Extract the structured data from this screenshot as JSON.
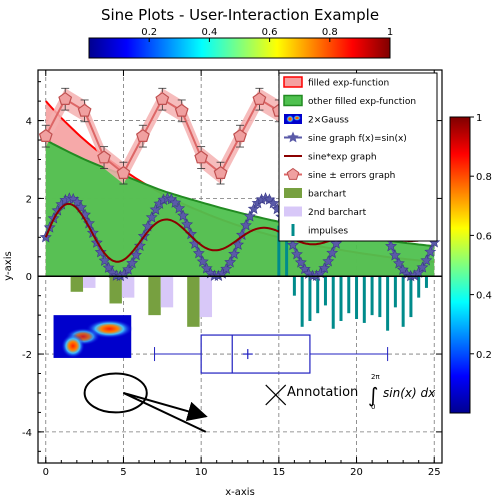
{
  "chart_data": {
    "type": "line",
    "title": "Sine Plots - User-Interaction Example",
    "xlabel": "x-axis",
    "ylabel": "y-axis",
    "xlim": [
      -0.5,
      25.5
    ],
    "ylim": [
      -4.8,
      5.3
    ],
    "x_ticks": [
      "0",
      "5",
      "10",
      "15",
      "20",
      "25"
    ],
    "y_ticks": [
      "-4",
      "-2",
      "0",
      "2",
      "4"
    ],
    "grid": true,
    "top_colorbar": {
      "ticks": [
        "0.2",
        "0.4",
        "0.6",
        "0.8",
        "1"
      ],
      "range": [
        0,
        1
      ],
      "colormap": "jet"
    },
    "right_colorbar": {
      "ticks": [
        "0.2",
        "0.4",
        "0.6",
        "0.8",
        "1"
      ],
      "range": [
        0,
        1
      ],
      "colormap": "jet"
    },
    "legend": {
      "position": "top-right",
      "entries": [
        {
          "label": "filled exp-function",
          "color": "#f5a0a0",
          "kind": "fill-red"
        },
        {
          "label": "other filled exp-function",
          "color": "#4fc14f",
          "kind": "fill-green"
        },
        {
          "label": "2×Gauss",
          "color": "#ff0000",
          "kind": "image"
        },
        {
          "label": "sine graph f(x)=sin(x)",
          "color": "#5a5aa8",
          "kind": "star-line"
        },
        {
          "label": "sine*exp graph",
          "color": "#8b0000",
          "kind": "line"
        },
        {
          "label": "sine ± errors graph",
          "color": "#e07a7a",
          "kind": "pentagon-line"
        },
        {
          "label": "barchart",
          "color": "#77a040",
          "kind": "bar"
        },
        {
          "label": "2nd barchart",
          "color": "#d8c8f8",
          "kind": "bar"
        },
        {
          "label": "impulses",
          "color": "#008b8b",
          "kind": "impulse"
        }
      ]
    },
    "series": [
      {
        "name": "filled exp-function",
        "color": "#f5a0a0",
        "stroke": "#ff0000",
        "x": [
          0,
          2.5,
          5,
          7.5,
          10,
          12.5,
          15,
          17.5,
          20,
          22.5,
          25
        ],
        "y": [
          4.5,
          3.5,
          2.73,
          2.12,
          1.66,
          1.29,
          1.0,
          0.78,
          0.61,
          0.47,
          0.37
        ]
      },
      {
        "name": "other filled exp-function",
        "color": "#4fc14f",
        "stroke": "#228b22",
        "x": [
          0,
          2.5,
          5,
          7.5,
          10,
          12.5,
          15,
          17.5,
          20,
          22.5,
          25
        ],
        "y": [
          3.5,
          3.0,
          2.6,
          2.2,
          1.9,
          1.63,
          1.4,
          1.2,
          1.03,
          0.89,
          0.77
        ]
      },
      {
        "name": "sine graph f(x)=sin(x)",
        "color": "#5a5aa8",
        "function": "sin",
        "amplitude": 1,
        "offset": 1,
        "x_range": [
          0,
          25
        ],
        "n": 100
      },
      {
        "name": "sine*exp graph",
        "color": "#8b0000",
        "function": "sinexp",
        "amplitude": 1,
        "offset": 1,
        "decay": 10,
        "x_range": [
          0,
          25
        ]
      },
      {
        "name": "sine ± errors graph",
        "color": "#e07a7a",
        "x": [
          0,
          1.25,
          2.5,
          3.75,
          5,
          6.25,
          7.5,
          8.75,
          10,
          11.25,
          12.5,
          13.75,
          15
        ],
        "y": [
          3.6,
          4.55,
          4.25,
          3.05,
          2.65,
          3.6,
          4.55,
          4.25,
          3.05,
          2.65,
          3.6,
          4.55,
          4.25
        ],
        "err": [
          0.28,
          0.28,
          0.28,
          0.28,
          0.28,
          0.28,
          0.28,
          0.28,
          0.28,
          0.28,
          0.28,
          0.28,
          0.28
        ]
      },
      {
        "name": "barchart",
        "color": "#77a040",
        "x": [
          2,
          4.5,
          7,
          9.5
        ],
        "y": [
          -0.4,
          -0.7,
          -1.0,
          -1.3
        ],
        "width": 0.8
      },
      {
        "name": "2nd barchart",
        "color": "#d8c8f8",
        "x": [
          2.8,
          5.3,
          7.8,
          10.3
        ],
        "y": [
          -0.3,
          -0.55,
          -0.8,
          -1.05
        ],
        "width": 0.8
      },
      {
        "name": "impulses",
        "color": "#008b8b",
        "x": [
          15,
          15.5,
          16,
          16.5,
          17,
          17.5,
          18,
          18.5,
          19,
          19.5,
          20,
          20.5,
          21,
          21.5,
          22,
          22.5,
          23,
          23.5,
          24,
          24.5
        ],
        "y": [
          1.3,
          0.9,
          -0.5,
          -1.3,
          -1.15,
          -0.95,
          -0.75,
          -1.35,
          -1.15,
          -0.95,
          -1.1,
          -1.2,
          -1.0,
          -1.05,
          -1.4,
          -0.8,
          -1.3,
          -1.05,
          -0.55,
          -0.3
        ]
      }
    ],
    "boxplot": {
      "y": -2,
      "min": 7,
      "q1": 10,
      "median": 12,
      "mean": 13,
      "q3": 17,
      "max": 22,
      "color": "#2020c0"
    },
    "gauss_image": {
      "x0": 0.5,
      "x1": 5.5,
      "y0": -2.1,
      "y1": -1.0
    },
    "annotations": {
      "ellipse": {
        "cx": 4.5,
        "cy": -3.0,
        "rx": 2.0,
        "ry": 0.5
      },
      "line_start": [
        5.0,
        -3.0
      ],
      "line_end": [
        10.3,
        -4.0
      ],
      "arrow_end": [
        10.3,
        -3.6
      ],
      "cross": [
        14.8,
        -3.05
      ],
      "text": "Annotation",
      "integral_lower": "0",
      "integral_upper": "2π",
      "integral_body": "sin(x) dx"
    }
  }
}
